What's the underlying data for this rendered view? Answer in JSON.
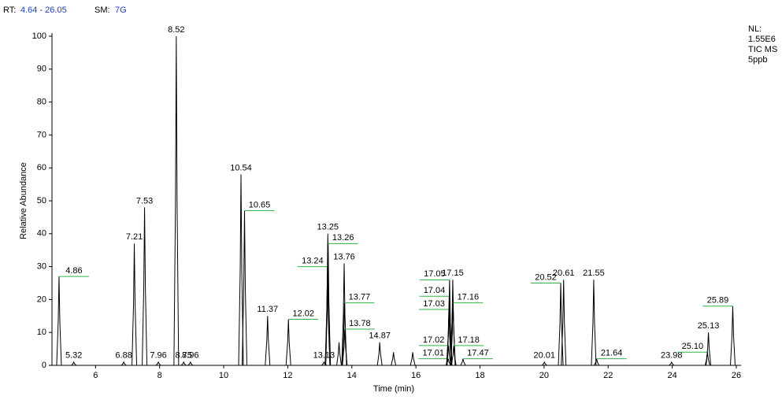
{
  "chart_data": {
    "type": "chromatogram",
    "header": {
      "rt_label": "RT:",
      "rt_range": "4.64 - 26.05",
      "sm_label": "SM:",
      "sm_value": "7G"
    },
    "notes": [
      "NL:",
      "1.55E6",
      "TIC  MS",
      "5ppb"
    ],
    "x_label": "Time (min)",
    "y_label": "Relative Abundance",
    "x": [
      4.86,
      5.32,
      6.88,
      7.21,
      7.53,
      7.96,
      8.52,
      8.75,
      8.96,
      10.54,
      10.65,
      11.37,
      12.02,
      13.13,
      13.24,
      13.25,
      13.26,
      13.6,
      13.76,
      13.77,
      13.78,
      14.87,
      15.3,
      15.9,
      17.01,
      17.02,
      17.03,
      17.04,
      17.05,
      17.15,
      17.16,
      17.18,
      17.47,
      20.01,
      20.52,
      20.61,
      21.55,
      21.64,
      23.98,
      25.1,
      25.13,
      25.89
    ],
    "x_labels": [
      "4.86",
      "5.32",
      "6.88",
      "7.21",
      "7.53",
      "7.96",
      "8.52",
      "8.75",
      "8.96",
      "10.54",
      "10.65",
      "11.37",
      "12.02",
      "13.13",
      "13.24",
      "13.25",
      "13.26",
      null,
      "13.76",
      "13.77",
      "13.78",
      "14.87",
      null,
      null,
      "17.01",
      "17.02",
      "17.03",
      "17.04",
      "17.05",
      "17.15",
      "17.16",
      "17.18",
      "17.47",
      "20.01",
      "20.52",
      "20.61",
      "21.55",
      "21.64",
      "23.98",
      "25.10",
      "25.13",
      "25.89"
    ],
    "values": [
      27,
      1,
      1,
      37,
      48,
      1,
      100,
      1,
      1,
      58,
      47,
      15,
      14,
      1,
      30,
      40,
      37,
      7,
      31,
      19,
      11,
      7,
      4,
      4,
      2,
      6,
      17,
      21,
      26,
      26,
      19,
      6,
      2,
      1,
      25,
      26,
      26,
      2,
      1,
      4,
      10,
      18
    ],
    "xlim": [
      4.64,
      26.05
    ],
    "ylim": [
      0,
      100
    ],
    "xticks": [
      6,
      8,
      10,
      12,
      14,
      16,
      18,
      20,
      22,
      24,
      26
    ],
    "yticks": [
      0,
      10,
      20,
      30,
      40,
      50,
      60,
      70,
      80,
      90,
      100
    ],
    "color": "#000000"
  }
}
